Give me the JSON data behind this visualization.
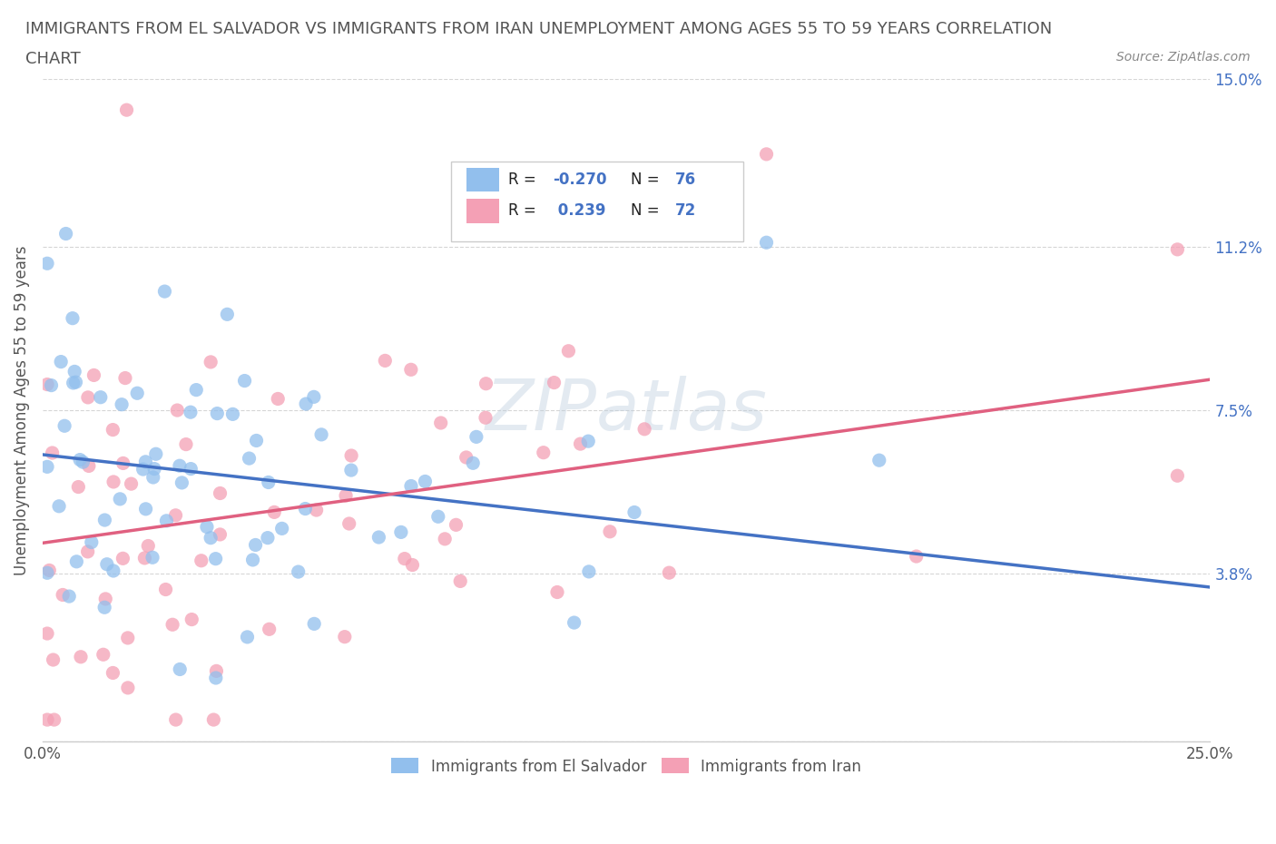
{
  "title_line1": "IMMIGRANTS FROM EL SALVADOR VS IMMIGRANTS FROM IRAN UNEMPLOYMENT AMONG AGES 55 TO 59 YEARS CORRELATION",
  "title_line2": "CHART",
  "source_text": "Source: ZipAtlas.com",
  "ylabel": "Unemployment Among Ages 55 to 59 years",
  "xlim": [
    0.0,
    0.25
  ],
  "ylim": [
    0.0,
    0.15
  ],
  "ytick_vals": [
    0.0,
    0.038,
    0.075,
    0.112,
    0.15
  ],
  "ytick_labels": [
    "",
    "3.8%",
    "7.5%",
    "11.2%",
    "15.0%"
  ],
  "xtick_positions": [
    0.0,
    0.05,
    0.1,
    0.15,
    0.2,
    0.25
  ],
  "xtick_labels": [
    "0.0%",
    "",
    "",
    "",
    "",
    "25.0%"
  ],
  "el_salvador_R": -0.27,
  "el_salvador_N": 76,
  "iran_R": 0.239,
  "iran_N": 72,
  "el_salvador_color": "#92BFED",
  "iran_color": "#F4A0B5",
  "el_salvador_line_color": "#4472C4",
  "iran_line_color": "#E06080",
  "background_color": "#FFFFFF",
  "grid_color": "#CCCCCC",
  "watermark": "ZIPatlas",
  "title_fontsize": 13,
  "axis_label_fontsize": 12,
  "tick_fontsize": 12,
  "legend_label_es": "Immigrants from El Salvador",
  "legend_label_ir": "Immigrants from Iran"
}
